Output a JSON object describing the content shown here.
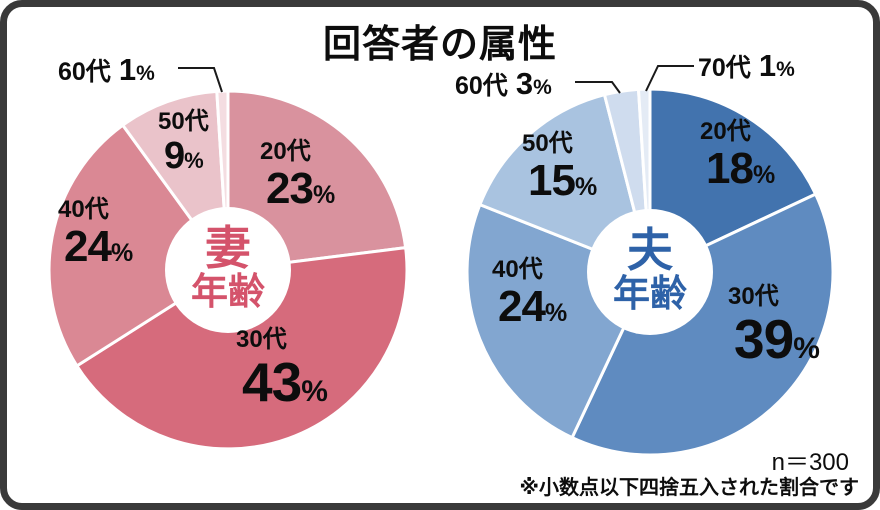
{
  "title": "回答者の属性",
  "unit": "%",
  "footer": {
    "sample_size": "n＝300",
    "note": "※小数点以下四捨五入された割合です"
  },
  "chart_data": [
    {
      "type": "pie",
      "name": "wife-age",
      "donut": true,
      "legend": "none",
      "center_label": {
        "line1": "妻",
        "line2": "年齢"
      },
      "center_color": "#d4536b",
      "categories": [
        "20代",
        "30代",
        "40代",
        "50代",
        "60代"
      ],
      "values": [
        23,
        43,
        24,
        9,
        1
      ],
      "colors": [
        "#d9929e",
        "#d66b7c",
        "#da8894",
        "#eac3ca",
        "#f4dde1"
      ]
    },
    {
      "type": "pie",
      "name": "husband-age",
      "donut": true,
      "legend": "none",
      "center_label": {
        "line1": "夫",
        "line2": "年齢"
      },
      "center_color": "#2e62a8",
      "categories": [
        "20代",
        "30代",
        "40代",
        "50代",
        "60代",
        "70代"
      ],
      "values": [
        18,
        39,
        24,
        15,
        3,
        1
      ],
      "colors": [
        "#4273ae",
        "#5f8bc0",
        "#82a6d0",
        "#a9c3e0",
        "#cfdcee",
        "#e4ebf5"
      ]
    }
  ]
}
